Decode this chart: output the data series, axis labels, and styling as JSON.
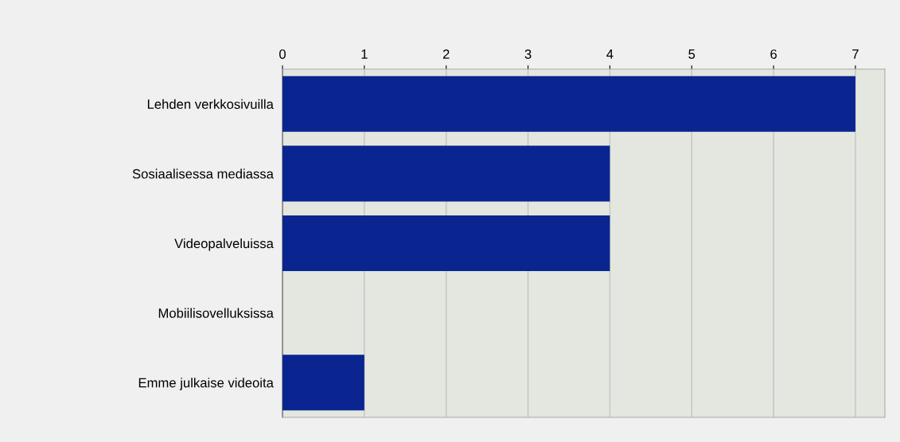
{
  "chart_data": {
    "type": "bar",
    "orientation": "horizontal",
    "categories": [
      "Lehden verkkosivuilla",
      "Sosiaalisessa mediassa",
      "Videopalveluissa",
      "Mobiilisovelluksissa",
      "Emme julkaise videoita"
    ],
    "values": [
      7,
      4,
      4,
      0,
      1
    ],
    "color": "#0a2590",
    "xlim": [
      0,
      7.36
    ],
    "xticks": [
      0,
      1,
      2,
      3,
      4,
      5,
      6,
      7
    ],
    "grid": "x"
  }
}
